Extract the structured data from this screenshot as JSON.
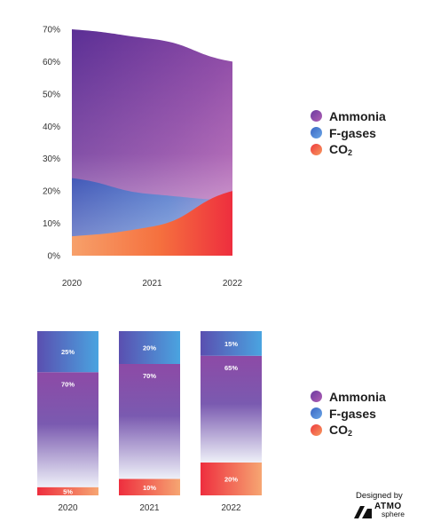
{
  "chart_data": [
    {
      "type": "area",
      "x": [
        "2020",
        "2021",
        "2022"
      ],
      "y_ticks": [
        "0%",
        "10%",
        "20%",
        "30%",
        "40%",
        "50%",
        "60%",
        "70%"
      ],
      "ylim": [
        0,
        70
      ],
      "series": [
        {
          "name": "Ammonia",
          "values": [
            70,
            67,
            60
          ]
        },
        {
          "name": "F-gases",
          "values": [
            24,
            19,
            17
          ]
        },
        {
          "name": "CO2",
          "values": [
            6,
            9,
            20
          ]
        }
      ],
      "legend_position": "right"
    },
    {
      "type": "bar",
      "stacked": true,
      "categories": [
        "2020",
        "2021",
        "2022"
      ],
      "series": [
        {
          "name": "CO2",
          "values": [
            5,
            10,
            20
          ],
          "labels": [
            "5%",
            "10%",
            "20%"
          ]
        },
        {
          "name": "Ammonia",
          "values": [
            70,
            70,
            65
          ],
          "labels": [
            "70%",
            "70%",
            "65%"
          ]
        },
        {
          "name": "F-gases",
          "values": [
            25,
            20,
            15
          ],
          "labels": [
            "25%",
            "20%",
            "15%"
          ]
        }
      ],
      "legend_position": "right"
    }
  ],
  "legend": {
    "items": [
      {
        "label": "Ammonia",
        "sub": ""
      },
      {
        "label": "F-gases",
        "sub": ""
      },
      {
        "label": "CO",
        "sub": "2"
      }
    ]
  },
  "colors": {
    "ammonia": "#8e4aa6",
    "f_gases": "#4a8fd8",
    "co2": "#f5643c"
  },
  "credit": {
    "designed_by": "Designed by",
    "brand_line1": "ATMO",
    "brand_line2": "sphere"
  }
}
